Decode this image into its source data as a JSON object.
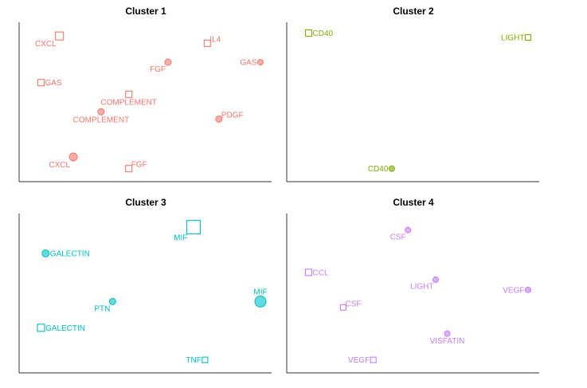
{
  "chart_data": [
    {
      "type": "scatter",
      "title": "Cluster 1",
      "color": "#F8766D",
      "xlim": [
        0,
        1
      ],
      "ylim": [
        0,
        1
      ],
      "grid": false,
      "points": [
        {
          "x": 0.13,
          "y": 0.95,
          "shape": "square",
          "size": 10,
          "label": "CXCL",
          "label_pos": "bottom-left"
        },
        {
          "x": 0.77,
          "y": 0.9,
          "shape": "square",
          "size": 8,
          "label": "IL4",
          "label_pos": "top-right"
        },
        {
          "x": 0.6,
          "y": 0.77,
          "shape": "circle",
          "size": 8,
          "label": "FGF",
          "label_pos": "bottom-left"
        },
        {
          "x": 1.0,
          "y": 0.77,
          "shape": "circle",
          "size": 7,
          "label": "GAS",
          "label_pos": "left"
        },
        {
          "x": 0.05,
          "y": 0.63,
          "shape": "square",
          "size": 8,
          "label": "GAS",
          "label_pos": "right"
        },
        {
          "x": 0.43,
          "y": 0.55,
          "shape": "square",
          "size": 8,
          "label": "COMPLEMENT",
          "label_pos": "bottom"
        },
        {
          "x": 0.31,
          "y": 0.43,
          "shape": "circle",
          "size": 8,
          "label": "COMPLEMENT",
          "label_pos": "bottom"
        },
        {
          "x": 0.82,
          "y": 0.38,
          "shape": "circle",
          "size": 8,
          "label": "PDGF",
          "label_pos": "top-right"
        },
        {
          "x": 0.19,
          "y": 0.12,
          "shape": "circle",
          "size": 10,
          "label": "CXCL",
          "label_pos": "bottom-left"
        },
        {
          "x": 0.43,
          "y": 0.04,
          "shape": "square",
          "size": 8,
          "label": "FGF",
          "label_pos": "top-right"
        }
      ]
    },
    {
      "type": "scatter",
      "title": "Cluster 2",
      "color": "#7CAE00",
      "xlim": [
        0,
        1
      ],
      "ylim": [
        0,
        1
      ],
      "grid": false,
      "points": [
        {
          "x": 0.05,
          "y": 0.97,
          "shape": "square",
          "size": 8,
          "label": "CD40",
          "label_pos": "right"
        },
        {
          "x": 1.0,
          "y": 0.94,
          "shape": "square",
          "size": 7,
          "label": "LIGHT",
          "label_pos": "left"
        },
        {
          "x": 0.41,
          "y": 0.04,
          "shape": "circle",
          "size": 7,
          "label": "CD40",
          "label_pos": "left"
        }
      ]
    },
    {
      "type": "scatter",
      "title": "Cluster 3",
      "color": "#00BFC4",
      "xlim": [
        0,
        1
      ],
      "ylim": [
        0,
        1
      ],
      "grid": false,
      "points": [
        {
          "x": 0.71,
          "y": 0.95,
          "shape": "square",
          "size": 17,
          "label": "MIF",
          "label_pos": "bottom-left"
        },
        {
          "x": 0.07,
          "y": 0.77,
          "shape": "circle",
          "size": 9,
          "label": "GALECTIN",
          "label_pos": "right"
        },
        {
          "x": 1.0,
          "y": 0.44,
          "shape": "circle",
          "size": 14,
          "label": "MIF",
          "label_pos": "top"
        },
        {
          "x": 0.36,
          "y": 0.44,
          "shape": "circle",
          "size": 8,
          "label": "PTN",
          "label_pos": "bottom-left"
        },
        {
          "x": 0.05,
          "y": 0.26,
          "shape": "square",
          "size": 9,
          "label": "GALECTIN",
          "label_pos": "right"
        },
        {
          "x": 0.76,
          "y": 0.04,
          "shape": "square",
          "size": 7,
          "label": "TNF",
          "label_pos": "left"
        }
      ]
    },
    {
      "type": "scatter",
      "title": "Cluster 4",
      "color": "#C77CFF",
      "xlim": [
        0,
        1
      ],
      "ylim": [
        0,
        1
      ],
      "grid": false,
      "points": [
        {
          "x": 0.48,
          "y": 0.93,
          "shape": "circle",
          "size": 7,
          "label": "CSF",
          "label_pos": "bottom-left"
        },
        {
          "x": 0.05,
          "y": 0.64,
          "shape": "square",
          "size": 8,
          "label": "CCL",
          "label_pos": "right"
        },
        {
          "x": 0.6,
          "y": 0.59,
          "shape": "circle",
          "size": 7,
          "label": "LIGHT",
          "label_pos": "bottom-left"
        },
        {
          "x": 1.0,
          "y": 0.52,
          "shape": "circle",
          "size": 7,
          "label": "VEGF",
          "label_pos": "left"
        },
        {
          "x": 0.2,
          "y": 0.4,
          "shape": "square",
          "size": 7,
          "label": "CSF",
          "label_pos": "top-right"
        },
        {
          "x": 0.65,
          "y": 0.22,
          "shape": "circle",
          "size": 7,
          "label": "VISFATIN",
          "label_pos": "bottom"
        },
        {
          "x": 0.33,
          "y": 0.04,
          "shape": "square",
          "size": 7,
          "label": "VEGF",
          "label_pos": "left"
        }
      ]
    }
  ]
}
